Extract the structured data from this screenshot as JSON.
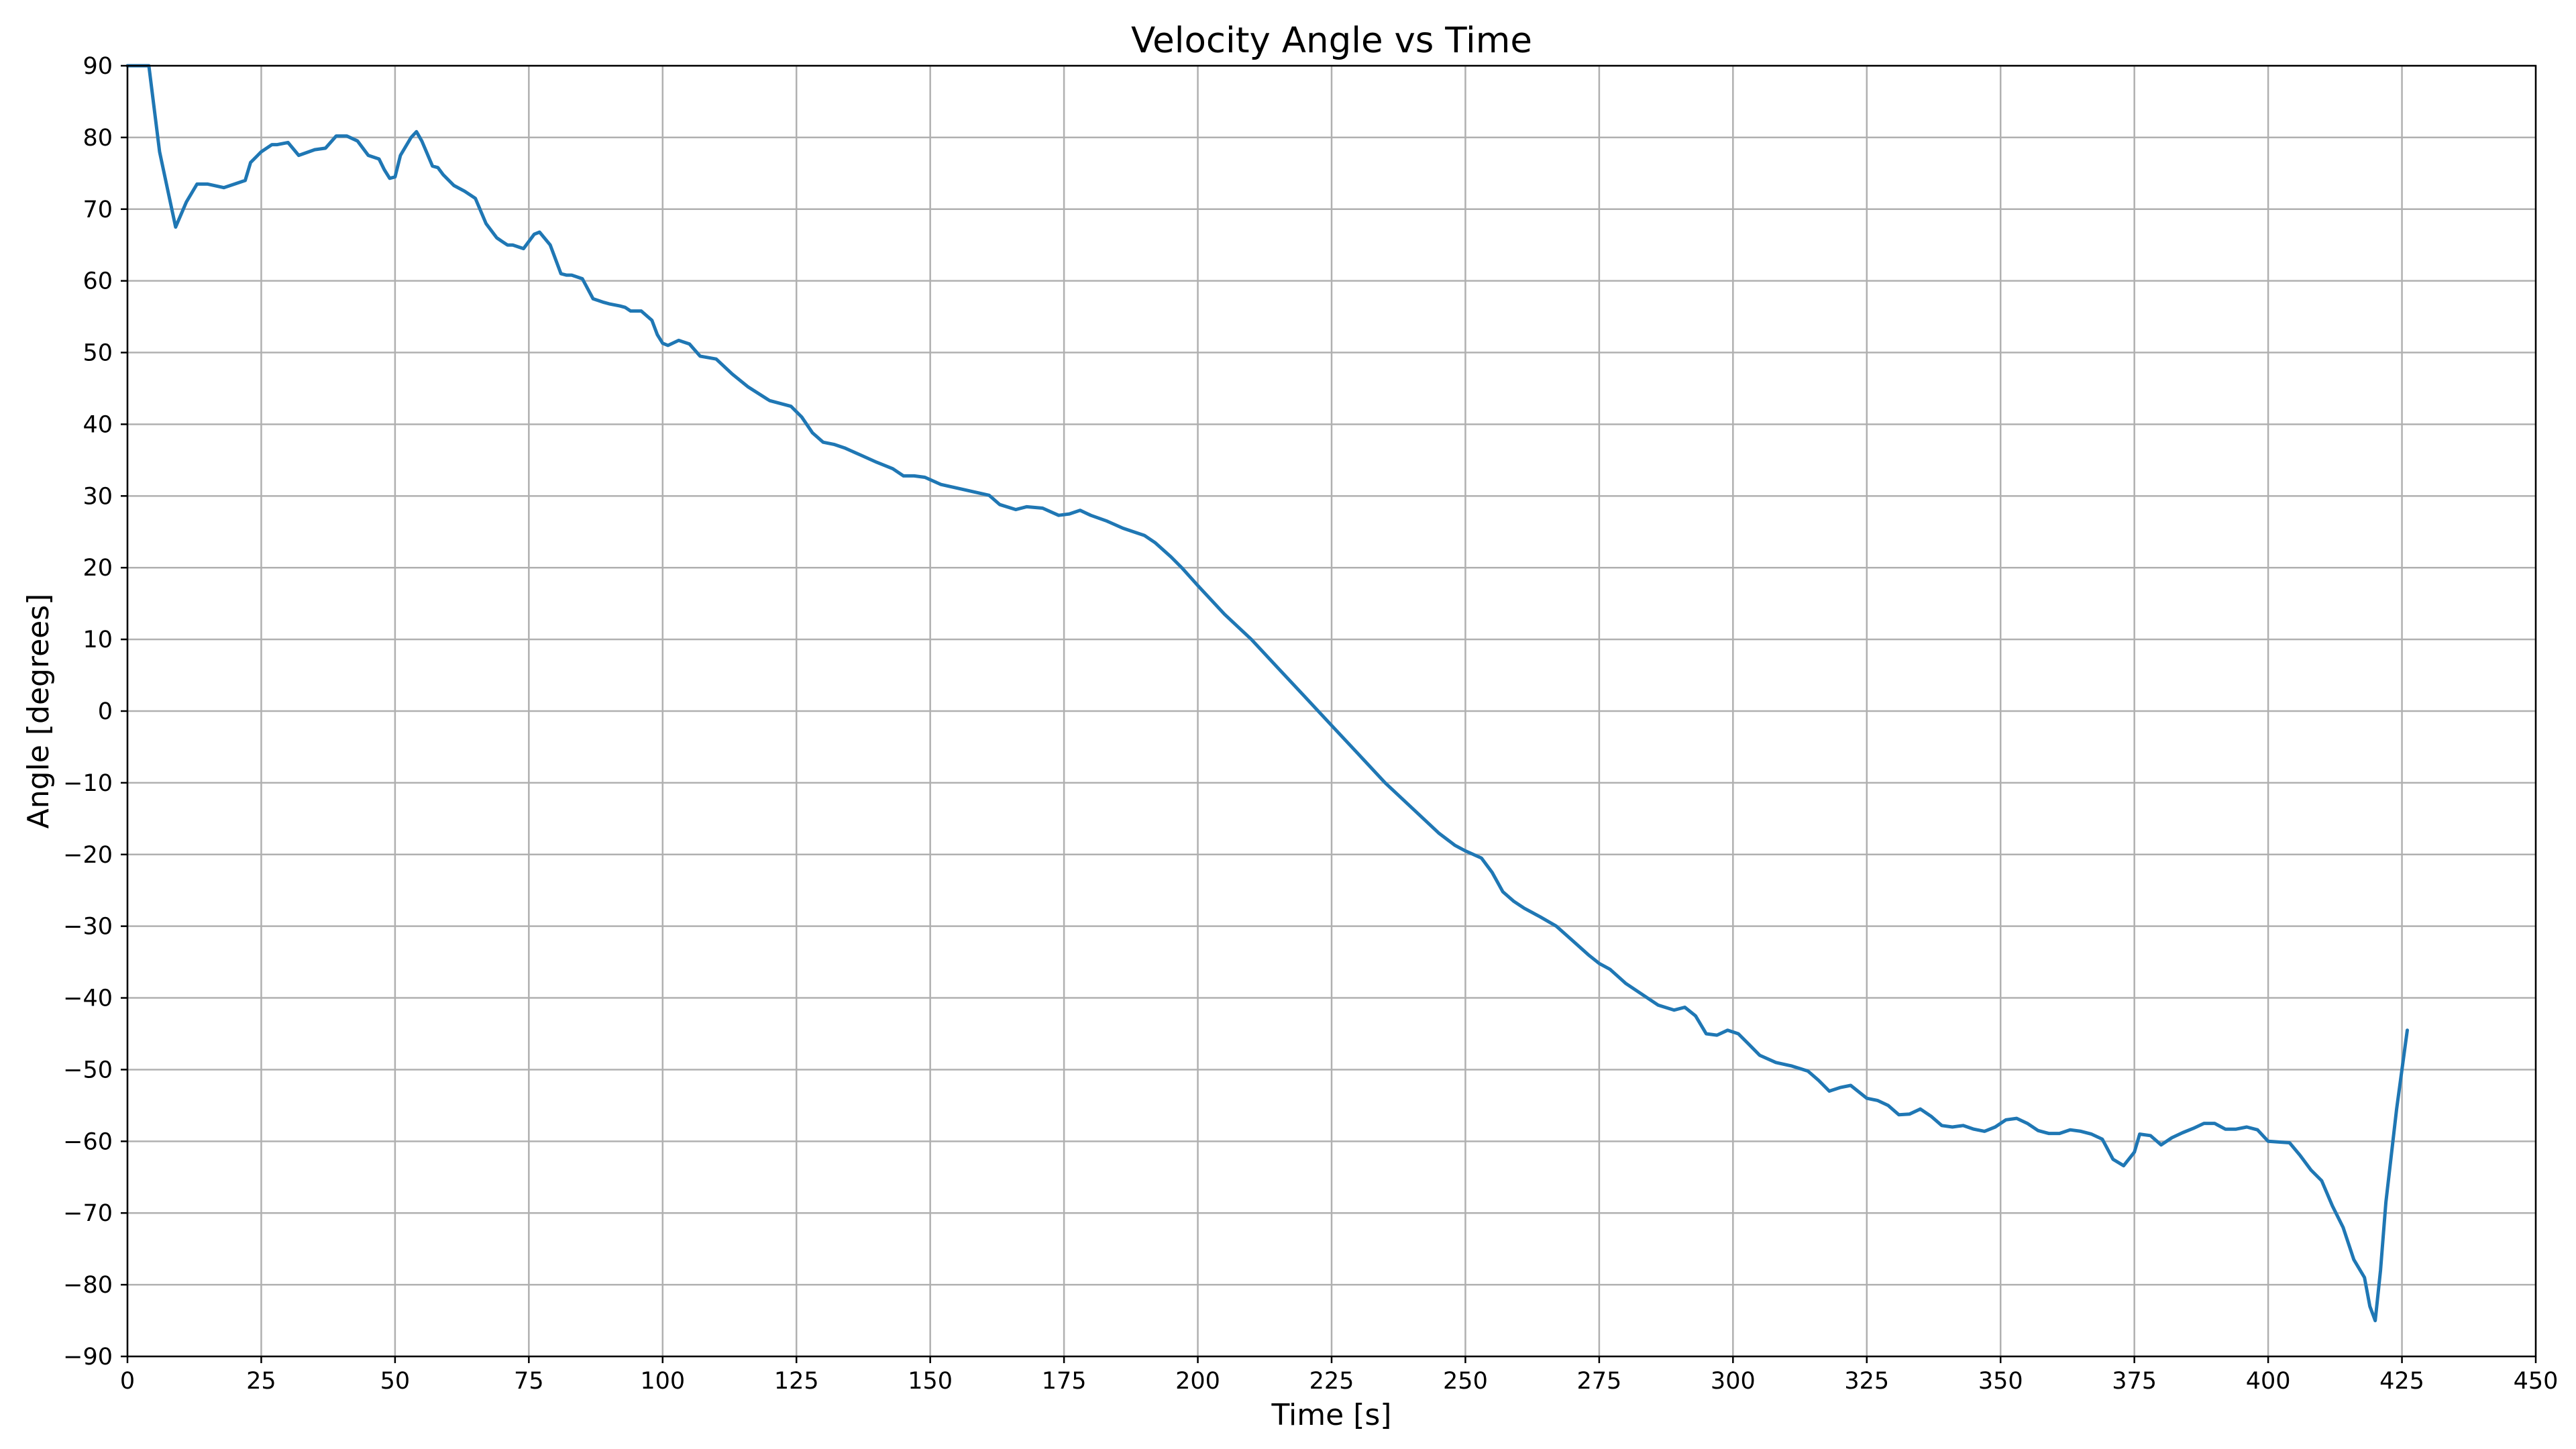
{
  "chart_data": {
    "type": "line",
    "title": "Velocity Angle vs Time",
    "xlabel": "Time [s]",
    "ylabel": "Angle [degrees]",
    "xlim": [
      0,
      450
    ],
    "ylim": [
      -90,
      90
    ],
    "xticks": [
      0,
      25,
      50,
      75,
      100,
      125,
      150,
      175,
      200,
      225,
      250,
      275,
      300,
      325,
      350,
      375,
      400,
      425,
      450
    ],
    "yticks": [
      90,
      80,
      70,
      60,
      50,
      40,
      30,
      20,
      10,
      0,
      -10,
      -20,
      -30,
      -40,
      -50,
      -60,
      -70,
      -80,
      -90
    ],
    "xtick_labels": [
      "0",
      "25",
      "50",
      "75",
      "100",
      "125",
      "150",
      "175",
      "200",
      "225",
      "250",
      "275",
      "300",
      "325",
      "350",
      "375",
      "400",
      "425",
      "450"
    ],
    "ytick_labels": [
      "90",
      "80",
      "70",
      "60",
      "50",
      "40",
      "30",
      "20",
      "10",
      "0",
      "−10",
      "−20",
      "−30",
      "−40",
      "−50",
      "−60",
      "−70",
      "−80",
      "−90"
    ],
    "grid": true,
    "series_color": "#1f77b4",
    "series": [
      {
        "x": [
          0,
          4,
          6,
          9,
          11,
          13,
          15,
          18,
          20,
          22,
          23,
          25,
          27,
          28,
          30,
          32,
          35,
          37,
          39,
          41,
          43,
          45,
          47,
          48,
          49,
          50,
          51,
          53,
          54,
          55,
          57,
          58,
          59,
          61,
          63,
          65,
          67,
          69,
          70,
          71,
          72,
          74,
          76,
          77,
          79,
          80,
          81,
          82,
          83,
          85,
          87,
          89,
          90,
          92,
          93,
          94,
          96,
          98,
          99,
          100,
          101,
          103,
          105,
          107,
          110,
          113,
          116,
          120,
          124,
          126,
          128,
          130,
          132,
          134,
          137,
          140,
          143,
          145,
          147,
          149,
          152,
          155,
          158,
          161,
          163,
          166,
          168,
          171,
          174,
          176,
          178,
          180,
          183,
          186,
          188,
          190,
          192,
          195,
          197,
          200,
          205,
          210,
          215,
          220,
          225,
          230,
          235,
          240,
          245,
          248,
          250,
          253,
          255,
          257,
          259,
          261,
          264,
          267,
          270,
          273,
          275,
          277,
          280,
          283,
          286,
          289,
          291,
          293,
          295,
          297,
          299,
          301,
          303,
          305,
          308,
          311,
          314,
          316,
          318,
          320,
          322,
          325,
          327,
          329,
          331,
          333,
          335,
          337,
          339,
          341,
          343,
          345,
          347,
          349,
          351,
          353,
          355,
          357,
          359,
          361,
          363,
          365,
          367,
          369,
          371,
          373,
          375,
          376,
          378,
          380,
          382,
          384,
          386,
          388,
          390,
          392,
          394,
          396,
          398,
          400,
          402,
          404,
          406,
          408,
          410,
          412,
          414,
          416,
          418,
          419,
          420,
          421,
          422,
          423,
          424,
          426
        ],
        "y": [
          90,
          90,
          78,
          67.5,
          71,
          73.5,
          73.5,
          73,
          73.5,
          74,
          76.5,
          78,
          79,
          79,
          79.3,
          77.5,
          78.3,
          78.5,
          80.2,
          80.2,
          79.5,
          77.5,
          77,
          75.5,
          74.3,
          74.5,
          77.5,
          80,
          80.8,
          79.5,
          76,
          75.8,
          74.8,
          73.3,
          72.5,
          71.5,
          68,
          66,
          65.5,
          65,
          65,
          64.5,
          66.5,
          66.8,
          65,
          63,
          61,
          60.8,
          60.8,
          60.3,
          57.5,
          57,
          56.8,
          56.5,
          56.3,
          55.8,
          55.8,
          54.5,
          52.5,
          51.3,
          51,
          51.7,
          51.2,
          49.5,
          49.1,
          47,
          45.2,
          43.3,
          42.5,
          41,
          38.8,
          37.5,
          37.2,
          36.7,
          35.7,
          34.7,
          33.8,
          32.8,
          32.8,
          32.6,
          31.6,
          31.1,
          30.6,
          30.1,
          28.8,
          28.1,
          28.5,
          28.3,
          27.3,
          27.5,
          28,
          27.3,
          26.5,
          25.5,
          25,
          24.5,
          23.5,
          21.5,
          20,
          17.5,
          13.5,
          10,
          6,
          2,
          -2,
          -6,
          -10,
          -13.5,
          -17,
          -18.7,
          -19.5,
          -20.5,
          -22.5,
          -25.2,
          -26.5,
          -27.5,
          -28.7,
          -30,
          -32,
          -34,
          -35.2,
          -36,
          -38,
          -39.5,
          -41,
          -41.7,
          -41.3,
          -42.5,
          -45,
          -45.2,
          -44.5,
          -45,
          -46.5,
          -48,
          -49,
          -49.5,
          -50.2,
          -51.5,
          -53,
          -52.5,
          -52.2,
          -54,
          -54.3,
          -55,
          -56.3,
          -56.2,
          -55.5,
          -56.5,
          -57.8,
          -58,
          -57.8,
          -58.3,
          -58.6,
          -58,
          -57,
          -56.8,
          -57.5,
          -58.5,
          -58.9,
          -58.9,
          -58.4,
          -58.6,
          -59,
          -59.7,
          -62.5,
          -63.4,
          -61.5,
          -59,
          -59.2,
          -60.5,
          -59.5,
          -58.8,
          -58.2,
          -57.5,
          -57.5,
          -58.3,
          -58.3,
          -58,
          -58.4,
          -60,
          -60.1,
          -60.2,
          -62,
          -64,
          -65.5,
          -69,
          -72,
          -76.5,
          -79,
          -83,
          -85,
          -78,
          -68.5,
          -62,
          -55.5,
          -44.5
        ]
      }
    ]
  }
}
